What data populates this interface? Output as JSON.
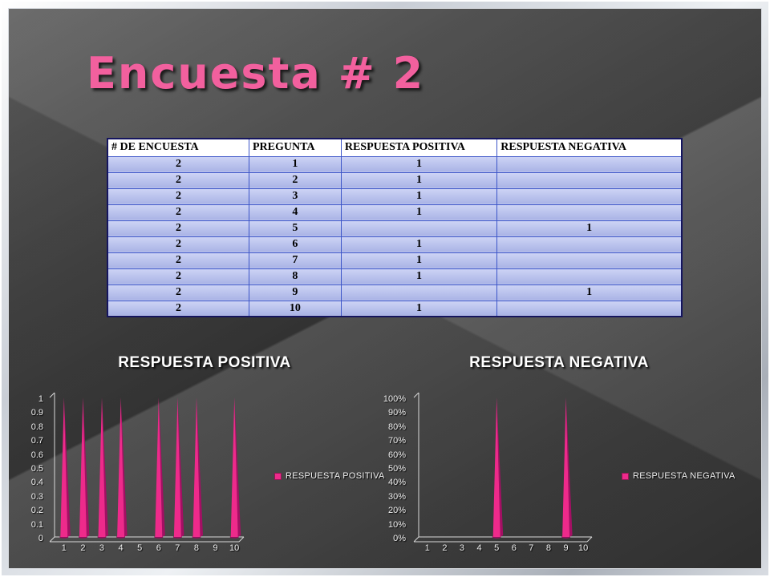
{
  "slide": {
    "title": "Encuesta # 2"
  },
  "table": {
    "headers": [
      "# DE ENCUESTA",
      "PREGUNTA",
      "RESPUESTA POSITIVA",
      "RESPUESTA NEGATIVA"
    ],
    "rows": [
      [
        "2",
        "1",
        "1",
        ""
      ],
      [
        "2",
        "2",
        "1",
        ""
      ],
      [
        "2",
        "3",
        "1",
        ""
      ],
      [
        "2",
        "4",
        "1",
        ""
      ],
      [
        "2",
        "5",
        "",
        "1"
      ],
      [
        "2",
        "6",
        "1",
        ""
      ],
      [
        "2",
        "7",
        "1",
        ""
      ],
      [
        "2",
        "8",
        "1",
        ""
      ],
      [
        "2",
        "9",
        "",
        "1"
      ],
      [
        "2",
        "10",
        "1",
        ""
      ]
    ]
  },
  "chart_data": [
    {
      "type": "bar",
      "bar_style": "3d-pyramid-spike",
      "title": "RESPUESTA POSITIVA",
      "categories": [
        "1",
        "2",
        "3",
        "4",
        "5",
        "6",
        "7",
        "8",
        "9",
        "10"
      ],
      "values": [
        1,
        1,
        1,
        1,
        0,
        1,
        1,
        1,
        0,
        1
      ],
      "ylim": [
        0,
        1
      ],
      "yticks": [
        "1",
        "0.9",
        "0.8",
        "0.7",
        "0.6",
        "0.5",
        "0.4",
        "0.3",
        "0.2",
        "0.1",
        "0"
      ],
      "xlabel": "",
      "ylabel": "",
      "grid": false,
      "legend": [
        "RESPUESTA POSITIVA"
      ],
      "legend_position": "right",
      "series_color": "#ee2a8b"
    },
    {
      "type": "bar",
      "bar_style": "3d-pyramid-spike",
      "title": "RESPUESTA NEGATIVA",
      "categories": [
        "1",
        "2",
        "3",
        "4",
        "5",
        "6",
        "7",
        "8",
        "9",
        "10"
      ],
      "values": [
        0,
        0,
        0,
        0,
        100,
        0,
        0,
        0,
        100,
        0
      ],
      "ylim": [
        0,
        100
      ],
      "yticks": [
        "100%",
        "90%",
        "80%",
        "70%",
        "60%",
        "50%",
        "40%",
        "30%",
        "20%",
        "10%",
        "0%"
      ],
      "xlabel": "",
      "ylabel": "",
      "grid": false,
      "legend": [
        "RESPUESTA NEGATIVA"
      ],
      "legend_position": "right",
      "series_color": "#ee2a8b"
    }
  ],
  "colors": {
    "title_pink": "#f2609e",
    "spike_pink": "#ee2a8b",
    "spike_dark": "#a40f64",
    "spike_base": "#8f135c",
    "table_grid_blue": "#3c55c8",
    "table_body_blue": "#aab4e6",
    "axis_gray": "#d9d9d9"
  }
}
